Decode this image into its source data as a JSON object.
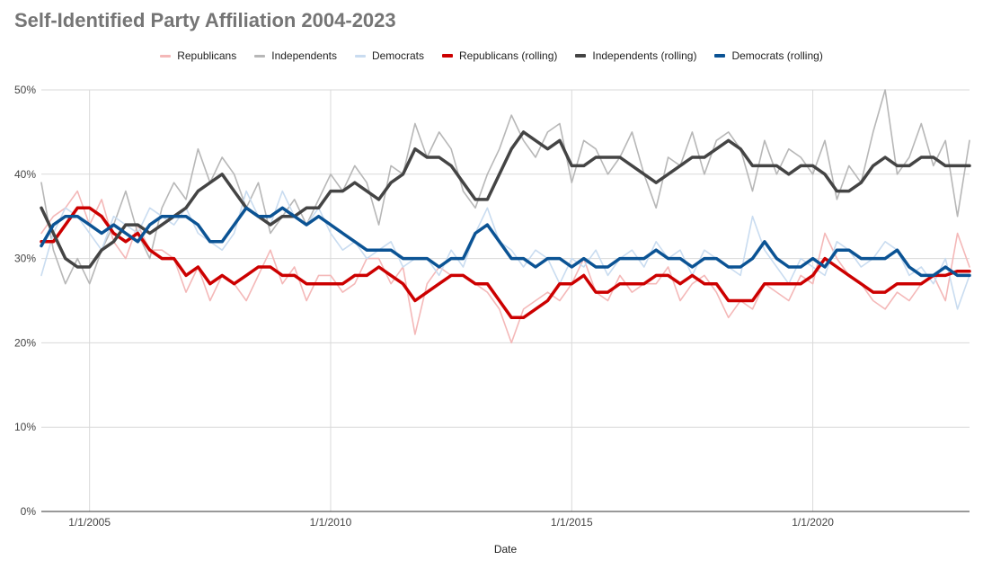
{
  "chart_data": {
    "type": "line",
    "title": "Self-Identified Party Affiliation 2004-2023",
    "xlabel": "Date",
    "ylabel": "",
    "xlim": [
      2004.0,
      2023.25
    ],
    "ylim": [
      0,
      50
    ],
    "x_ticks": [
      {
        "value": 2005,
        "label": "1/1/2005"
      },
      {
        "value": 2010,
        "label": "1/1/2010"
      },
      {
        "value": 2015,
        "label": "1/1/2015"
      },
      {
        "value": 2020,
        "label": "1/1/2020"
      }
    ],
    "y_ticks": [
      {
        "value": 0,
        "label": "0%"
      },
      {
        "value": 10,
        "label": "10%"
      },
      {
        "value": 20,
        "label": "20%"
      },
      {
        "value": 30,
        "label": "30%"
      },
      {
        "value": 40,
        "label": "40%"
      },
      {
        "value": 50,
        "label": "50%"
      }
    ],
    "grid": true,
    "legend_position": "top-center",
    "series": [
      {
        "name": "Republicans",
        "color": "#f4b8b8",
        "kind": "raw",
        "x": [
          2004.0,
          2004.25,
          2004.5,
          2004.75,
          2005.0,
          2005.25,
          2005.5,
          2005.75,
          2006.0,
          2006.25,
          2006.5,
          2006.75,
          2007.0,
          2007.25,
          2007.5,
          2007.75,
          2008.0,
          2008.25,
          2008.5,
          2008.75,
          2009.0,
          2009.25,
          2009.5,
          2009.75,
          2010.0,
          2010.25,
          2010.5,
          2010.75,
          2011.0,
          2011.25,
          2011.5,
          2011.75,
          2012.0,
          2012.25,
          2012.5,
          2012.75,
          2013.0,
          2013.25,
          2013.5,
          2013.75,
          2014.0,
          2014.25,
          2014.5,
          2014.75,
          2015.0,
          2015.25,
          2015.5,
          2015.75,
          2016.0,
          2016.25,
          2016.5,
          2016.75,
          2017.0,
          2017.25,
          2017.5,
          2017.75,
          2018.0,
          2018.25,
          2018.5,
          2018.75,
          2019.0,
          2019.25,
          2019.5,
          2019.75,
          2020.0,
          2020.25,
          2020.5,
          2020.75,
          2021.0,
          2021.25,
          2021.5,
          2021.75,
          2022.0,
          2022.25,
          2022.5,
          2022.75,
          2023.0,
          2023.25
        ],
        "values": [
          33,
          35,
          36,
          38,
          34,
          37,
          32,
          30,
          34,
          31,
          31,
          30,
          26,
          29,
          25,
          28,
          27,
          25,
          28,
          31,
          27,
          29,
          25,
          28,
          28,
          26,
          27,
          30,
          30,
          27,
          29,
          21,
          27,
          29,
          28,
          28,
          27,
          26,
          24,
          20,
          24,
          25,
          26,
          25,
          27,
          30,
          26,
          25,
          28,
          26,
          27,
          27,
          29,
          25,
          27,
          28,
          26,
          23,
          25,
          24,
          27,
          26,
          25,
          28,
          27,
          33,
          30,
          28,
          27,
          25,
          24,
          26,
          25,
          27,
          28,
          25,
          33,
          29
        ]
      },
      {
        "name": "Independents",
        "color": "#b7b7b7",
        "kind": "raw",
        "x": [
          2004.0,
          2004.25,
          2004.5,
          2004.75,
          2005.0,
          2005.25,
          2005.5,
          2005.75,
          2006.0,
          2006.25,
          2006.5,
          2006.75,
          2007.0,
          2007.25,
          2007.5,
          2007.75,
          2008.0,
          2008.25,
          2008.5,
          2008.75,
          2009.0,
          2009.25,
          2009.5,
          2009.75,
          2010.0,
          2010.25,
          2010.5,
          2010.75,
          2011.0,
          2011.25,
          2011.5,
          2011.75,
          2012.0,
          2012.25,
          2012.5,
          2012.75,
          2013.0,
          2013.25,
          2013.5,
          2013.75,
          2014.0,
          2014.25,
          2014.5,
          2014.75,
          2015.0,
          2015.25,
          2015.5,
          2015.75,
          2016.0,
          2016.25,
          2016.5,
          2016.75,
          2017.0,
          2017.25,
          2017.5,
          2017.75,
          2018.0,
          2018.25,
          2018.5,
          2018.75,
          2019.0,
          2019.25,
          2019.5,
          2019.75,
          2020.0,
          2020.25,
          2020.5,
          2020.75,
          2021.0,
          2021.25,
          2021.5,
          2021.75,
          2022.0,
          2022.25,
          2022.5,
          2022.75,
          2023.0,
          2023.25
        ],
        "values": [
          39,
          31,
          27,
          30,
          27,
          31,
          34,
          38,
          33,
          30,
          36,
          39,
          37,
          43,
          39,
          42,
          40,
          36,
          39,
          33,
          35,
          37,
          34,
          37,
          40,
          38,
          41,
          39,
          34,
          41,
          40,
          46,
          42,
          45,
          43,
          38,
          36,
          40,
          43,
          47,
          44,
          42,
          45,
          46,
          39,
          44,
          43,
          40,
          42,
          45,
          40,
          36,
          42,
          41,
          45,
          40,
          44,
          45,
          43,
          38,
          44,
          40,
          43,
          42,
          40,
          44,
          37,
          41,
          39,
          45,
          50,
          40,
          42,
          46,
          41,
          44,
          35,
          44
        ]
      },
      {
        "name": "Democrats",
        "color": "#c9dcf0",
        "kind": "raw",
        "x": [
          2004.0,
          2004.25,
          2004.5,
          2004.75,
          2005.0,
          2005.25,
          2005.5,
          2005.75,
          2006.0,
          2006.25,
          2006.5,
          2006.75,
          2007.0,
          2007.25,
          2007.5,
          2007.75,
          2008.0,
          2008.25,
          2008.5,
          2008.75,
          2009.0,
          2009.25,
          2009.5,
          2009.75,
          2010.0,
          2010.25,
          2010.5,
          2010.75,
          2011.0,
          2011.25,
          2011.5,
          2011.75,
          2012.0,
          2012.25,
          2012.5,
          2012.75,
          2013.0,
          2013.25,
          2013.5,
          2013.75,
          2014.0,
          2014.25,
          2014.5,
          2014.75,
          2015.0,
          2015.25,
          2015.5,
          2015.75,
          2016.0,
          2016.25,
          2016.5,
          2016.75,
          2017.0,
          2017.25,
          2017.5,
          2017.75,
          2018.0,
          2018.25,
          2018.5,
          2018.75,
          2019.0,
          2019.25,
          2019.5,
          2019.75,
          2020.0,
          2020.25,
          2020.5,
          2020.75,
          2021.0,
          2021.25,
          2021.5,
          2021.75,
          2022.0,
          2022.25,
          2022.5,
          2022.75,
          2023.0,
          2023.25
        ],
        "values": [
          28,
          33,
          36,
          35,
          33,
          31,
          35,
          34,
          33,
          36,
          35,
          34,
          36,
          33,
          32,
          31,
          33,
          38,
          35,
          34,
          38,
          35,
          34,
          36,
          33,
          31,
          32,
          30,
          31,
          32,
          29,
          30,
          30,
          28,
          31,
          29,
          33,
          36,
          32,
          31,
          29,
          31,
          30,
          27,
          30,
          29,
          31,
          28,
          30,
          31,
          29,
          32,
          30,
          31,
          28,
          31,
          30,
          29,
          28,
          35,
          31,
          29,
          27,
          30,
          29,
          28,
          32,
          31,
          29,
          30,
          32,
          31,
          28,
          29,
          27,
          30,
          24,
          28
        ]
      },
      {
        "name": "Republicans (rolling)",
        "color": "#cc0000",
        "kind": "rolling",
        "x": [
          2004.0,
          2004.25,
          2004.5,
          2004.75,
          2005.0,
          2005.25,
          2005.5,
          2005.75,
          2006.0,
          2006.25,
          2006.5,
          2006.75,
          2007.0,
          2007.25,
          2007.5,
          2007.75,
          2008.0,
          2008.25,
          2008.5,
          2008.75,
          2009.0,
          2009.25,
          2009.5,
          2009.75,
          2010.0,
          2010.25,
          2010.5,
          2010.75,
          2011.0,
          2011.25,
          2011.5,
          2011.75,
          2012.0,
          2012.25,
          2012.5,
          2012.75,
          2013.0,
          2013.25,
          2013.5,
          2013.75,
          2014.0,
          2014.25,
          2014.5,
          2014.75,
          2015.0,
          2015.25,
          2015.5,
          2015.75,
          2016.0,
          2016.25,
          2016.5,
          2016.75,
          2017.0,
          2017.25,
          2017.5,
          2017.75,
          2018.0,
          2018.25,
          2018.5,
          2018.75,
          2019.0,
          2019.25,
          2019.5,
          2019.75,
          2020.0,
          2020.25,
          2020.5,
          2020.75,
          2021.0,
          2021.25,
          2021.5,
          2021.75,
          2022.0,
          2022.25,
          2022.5,
          2022.75,
          2023.0,
          2023.25
        ],
        "values": [
          32,
          32,
          34,
          36,
          36,
          35,
          33,
          32,
          33,
          31,
          30,
          30,
          28,
          29,
          27,
          28,
          27,
          28,
          29,
          29,
          28,
          28,
          27,
          27,
          27,
          27,
          28,
          28,
          29,
          28,
          27,
          25,
          26,
          27,
          28,
          28,
          27,
          27,
          25,
          23,
          23,
          24,
          25,
          27,
          27,
          28,
          26,
          26,
          27,
          27,
          27,
          28,
          28,
          27,
          28,
          27,
          27,
          25,
          25,
          25,
          27,
          27,
          27,
          27,
          28,
          30,
          29,
          28,
          27,
          26,
          26,
          27,
          27,
          27,
          28,
          28,
          28.5,
          28.5
        ]
      },
      {
        "name": "Independents (rolling)",
        "color": "#444444",
        "kind": "rolling",
        "x": [
          2004.0,
          2004.25,
          2004.5,
          2004.75,
          2005.0,
          2005.25,
          2005.5,
          2005.75,
          2006.0,
          2006.25,
          2006.5,
          2006.75,
          2007.0,
          2007.25,
          2007.5,
          2007.75,
          2008.0,
          2008.25,
          2008.5,
          2008.75,
          2009.0,
          2009.25,
          2009.5,
          2009.75,
          2010.0,
          2010.25,
          2010.5,
          2010.75,
          2011.0,
          2011.25,
          2011.5,
          2011.75,
          2012.0,
          2012.25,
          2012.5,
          2012.75,
          2013.0,
          2013.25,
          2013.5,
          2013.75,
          2014.0,
          2014.25,
          2014.5,
          2014.75,
          2015.0,
          2015.25,
          2015.5,
          2015.75,
          2016.0,
          2016.25,
          2016.5,
          2016.75,
          2017.0,
          2017.25,
          2017.5,
          2017.75,
          2018.0,
          2018.25,
          2018.5,
          2018.75,
          2019.0,
          2019.25,
          2019.5,
          2019.75,
          2020.0,
          2020.25,
          2020.5,
          2020.75,
          2021.0,
          2021.25,
          2021.5,
          2021.75,
          2022.0,
          2022.25,
          2022.5,
          2022.75,
          2023.0,
          2023.25
        ],
        "values": [
          36,
          33,
          30,
          29,
          29,
          31,
          32,
          34,
          34,
          33,
          34,
          35,
          36,
          38,
          39,
          40,
          38,
          36,
          35,
          34,
          35,
          35,
          36,
          36,
          38,
          38,
          39,
          38,
          37,
          39,
          40,
          43,
          42,
          42,
          41,
          39,
          37,
          37,
          40,
          43,
          45,
          44,
          43,
          44,
          41,
          41,
          42,
          42,
          42,
          41,
          40,
          39,
          40,
          41,
          42,
          42,
          43,
          44,
          43,
          41,
          41,
          41,
          40,
          41,
          41,
          40,
          38,
          38,
          39,
          41,
          42,
          41,
          41,
          42,
          42,
          41,
          41,
          41
        ]
      },
      {
        "name": "Democrats (rolling)",
        "color": "#0b5394",
        "kind": "rolling",
        "x": [
          2004.0,
          2004.25,
          2004.5,
          2004.75,
          2005.0,
          2005.25,
          2005.5,
          2005.75,
          2006.0,
          2006.25,
          2006.5,
          2006.75,
          2007.0,
          2007.25,
          2007.5,
          2007.75,
          2008.0,
          2008.25,
          2008.5,
          2008.75,
          2009.0,
          2009.25,
          2009.5,
          2009.75,
          2010.0,
          2010.25,
          2010.5,
          2010.75,
          2011.0,
          2011.25,
          2011.5,
          2011.75,
          2012.0,
          2012.25,
          2012.5,
          2012.75,
          2013.0,
          2013.25,
          2013.5,
          2013.75,
          2014.0,
          2014.25,
          2014.5,
          2014.75,
          2015.0,
          2015.25,
          2015.5,
          2015.75,
          2016.0,
          2016.25,
          2016.5,
          2016.75,
          2017.0,
          2017.25,
          2017.5,
          2017.75,
          2018.0,
          2018.25,
          2018.5,
          2018.75,
          2019.0,
          2019.25,
          2019.5,
          2019.75,
          2020.0,
          2020.25,
          2020.5,
          2020.75,
          2021.0,
          2021.25,
          2021.5,
          2021.75,
          2022.0,
          2022.25,
          2022.5,
          2022.75,
          2023.0,
          2023.25
        ],
        "values": [
          31.5,
          34,
          35,
          35,
          34,
          33,
          34,
          33,
          32,
          34,
          35,
          35,
          35,
          34,
          32,
          32,
          34,
          36,
          35,
          35,
          36,
          35,
          34,
          35,
          34,
          33,
          32,
          31,
          31,
          31,
          30,
          30,
          30,
          29,
          30,
          30,
          33,
          34,
          32,
          30,
          30,
          29,
          30,
          30,
          29,
          30,
          29,
          29,
          30,
          30,
          30,
          31,
          30,
          30,
          29,
          30,
          30,
          29,
          29,
          30,
          32,
          30,
          29,
          29,
          30,
          29,
          31,
          31,
          30,
          30,
          30,
          31,
          29,
          28,
          28,
          29,
          28,
          28
        ]
      }
    ]
  }
}
